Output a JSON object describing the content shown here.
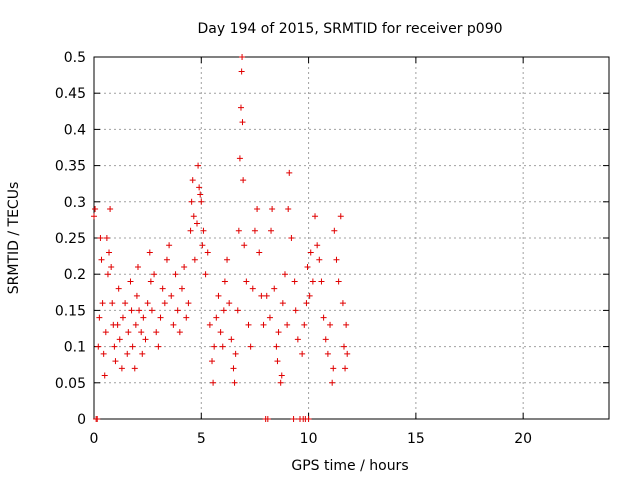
{
  "chart_data": {
    "type": "scatter",
    "title": "Day 194 of 2015, SRMTID for receiver p090",
    "xlabel": "GPS time / hours",
    "ylabel": "SRMTID / TECUs",
    "xlim": [
      0,
      24
    ],
    "ylim": [
      0,
      0.5
    ],
    "x_ticks": [
      0,
      5,
      10,
      15,
      20
    ],
    "x_tick_labels": [
      "0",
      "5",
      "10",
      "15",
      "20"
    ],
    "y_ticks": [
      0,
      0.05,
      0.1,
      0.15,
      0.2,
      0.25,
      0.3,
      0.35,
      0.4,
      0.45,
      0.5
    ],
    "y_tick_labels": [
      "0",
      "0.05",
      "0.1",
      "0.15",
      "0.2",
      "0.25",
      "0.3",
      "0.35",
      "0.4",
      "0.45",
      "0.5"
    ],
    "grid": true,
    "marker": "+",
    "color": "#e00000",
    "series": [
      {
        "name": "SRMTID",
        "points": [
          [
            0.0,
            0.28
          ],
          [
            0.05,
            0.29
          ],
          [
            0.1,
            0.0
          ],
          [
            0.15,
            0.0
          ],
          [
            0.2,
            0.1
          ],
          [
            0.25,
            0.14
          ],
          [
            0.3,
            0.25
          ],
          [
            0.35,
            0.22
          ],
          [
            0.4,
            0.16
          ],
          [
            0.45,
            0.09
          ],
          [
            0.5,
            0.06
          ],
          [
            0.55,
            0.12
          ],
          [
            0.6,
            0.25
          ],
          [
            0.65,
            0.2
          ],
          [
            0.7,
            0.23
          ],
          [
            0.75,
            0.29
          ],
          [
            0.8,
            0.21
          ],
          [
            0.85,
            0.16
          ],
          [
            0.9,
            0.13
          ],
          [
            0.95,
            0.1
          ],
          [
            1.0,
            0.08
          ],
          [
            1.1,
            0.13
          ],
          [
            1.15,
            0.18
          ],
          [
            1.2,
            0.11
          ],
          [
            1.3,
            0.07
          ],
          [
            1.35,
            0.14
          ],
          [
            1.45,
            0.16
          ],
          [
            1.55,
            0.09
          ],
          [
            1.6,
            0.12
          ],
          [
            1.7,
            0.19
          ],
          [
            1.75,
            0.15
          ],
          [
            1.8,
            0.1
          ],
          [
            1.9,
            0.07
          ],
          [
            1.95,
            0.13
          ],
          [
            2.0,
            0.17
          ],
          [
            2.05,
            0.21
          ],
          [
            2.1,
            0.15
          ],
          [
            2.2,
            0.12
          ],
          [
            2.25,
            0.09
          ],
          [
            2.3,
            0.14
          ],
          [
            2.4,
            0.11
          ],
          [
            2.5,
            0.16
          ],
          [
            2.6,
            0.23
          ],
          [
            2.65,
            0.19
          ],
          [
            2.7,
            0.15
          ],
          [
            2.8,
            0.2
          ],
          [
            2.9,
            0.12
          ],
          [
            3.0,
            0.1
          ],
          [
            3.1,
            0.14
          ],
          [
            3.2,
            0.18
          ],
          [
            3.3,
            0.16
          ],
          [
            3.4,
            0.22
          ],
          [
            3.5,
            0.24
          ],
          [
            3.6,
            0.17
          ],
          [
            3.7,
            0.13
          ],
          [
            3.8,
            0.2
          ],
          [
            3.9,
            0.15
          ],
          [
            4.0,
            0.12
          ],
          [
            4.1,
            0.18
          ],
          [
            4.2,
            0.21
          ],
          [
            4.3,
            0.14
          ],
          [
            4.4,
            0.16
          ],
          [
            4.5,
            0.26
          ],
          [
            4.55,
            0.3
          ],
          [
            4.6,
            0.33
          ],
          [
            4.65,
            0.28
          ],
          [
            4.7,
            0.22
          ],
          [
            4.8,
            0.27
          ],
          [
            4.85,
            0.35
          ],
          [
            4.9,
            0.32
          ],
          [
            4.95,
            0.31
          ],
          [
            5.0,
            0.3
          ],
          [
            5.05,
            0.24
          ],
          [
            5.1,
            0.26
          ],
          [
            5.2,
            0.2
          ],
          [
            5.3,
            0.23
          ],
          [
            5.4,
            0.13
          ],
          [
            5.5,
            0.08
          ],
          [
            5.55,
            0.05
          ],
          [
            5.6,
            0.1
          ],
          [
            5.7,
            0.14
          ],
          [
            5.8,
            0.17
          ],
          [
            5.9,
            0.12
          ],
          [
            6.0,
            0.1
          ],
          [
            6.05,
            0.15
          ],
          [
            6.1,
            0.19
          ],
          [
            6.2,
            0.22
          ],
          [
            6.3,
            0.16
          ],
          [
            6.4,
            0.11
          ],
          [
            6.5,
            0.07
          ],
          [
            6.55,
            0.05
          ],
          [
            6.6,
            0.09
          ],
          [
            6.7,
            0.15
          ],
          [
            6.75,
            0.26
          ],
          [
            6.8,
            0.36
          ],
          [
            6.85,
            0.43
          ],
          [
            6.88,
            0.48
          ],
          [
            6.9,
            0.5
          ],
          [
            6.92,
            0.41
          ],
          [
            6.95,
            0.33
          ],
          [
            7.0,
            0.24
          ],
          [
            7.1,
            0.19
          ],
          [
            7.2,
            0.13
          ],
          [
            7.3,
            0.1
          ],
          [
            7.4,
            0.18
          ],
          [
            7.5,
            0.26
          ],
          [
            7.6,
            0.29
          ],
          [
            7.7,
            0.23
          ],
          [
            7.8,
            0.17
          ],
          [
            7.9,
            0.13
          ],
          [
            8.0,
            0.0
          ],
          [
            8.05,
            0.17
          ],
          [
            8.1,
            0.0
          ],
          [
            8.2,
            0.14
          ],
          [
            8.25,
            0.26
          ],
          [
            8.3,
            0.29
          ],
          [
            8.4,
            0.18
          ],
          [
            8.5,
            0.1
          ],
          [
            8.55,
            0.08
          ],
          [
            8.6,
            0.12
          ],
          [
            8.7,
            0.05
          ],
          [
            8.75,
            0.06
          ],
          [
            8.8,
            0.16
          ],
          [
            8.9,
            0.2
          ],
          [
            9.0,
            0.13
          ],
          [
            9.05,
            0.29
          ],
          [
            9.1,
            0.34
          ],
          [
            9.2,
            0.25
          ],
          [
            9.3,
            0.0
          ],
          [
            9.35,
            0.19
          ],
          [
            9.4,
            0.15
          ],
          [
            9.5,
            0.11
          ],
          [
            9.6,
            0.0
          ],
          [
            9.7,
            0.09
          ],
          [
            9.75,
            0.0
          ],
          [
            9.8,
            0.13
          ],
          [
            9.85,
            0.0
          ],
          [
            9.9,
            0.16
          ],
          [
            9.95,
            0.21
          ],
          [
            10.0,
            0.0
          ],
          [
            10.05,
            0.17
          ],
          [
            10.1,
            0.23
          ],
          [
            10.2,
            0.19
          ],
          [
            10.3,
            0.28
          ],
          [
            10.4,
            0.24
          ],
          [
            10.5,
            0.22
          ],
          [
            10.6,
            0.19
          ],
          [
            10.7,
            0.14
          ],
          [
            10.8,
            0.11
          ],
          [
            10.9,
            0.09
          ],
          [
            11.0,
            0.13
          ],
          [
            11.1,
            0.05
          ],
          [
            11.15,
            0.07
          ],
          [
            11.2,
            0.26
          ],
          [
            11.3,
            0.22
          ],
          [
            11.4,
            0.19
          ],
          [
            11.5,
            0.28
          ],
          [
            11.6,
            0.16
          ],
          [
            11.65,
            0.1
          ],
          [
            11.7,
            0.07
          ],
          [
            11.75,
            0.13
          ],
          [
            11.8,
            0.09
          ]
        ]
      }
    ]
  }
}
